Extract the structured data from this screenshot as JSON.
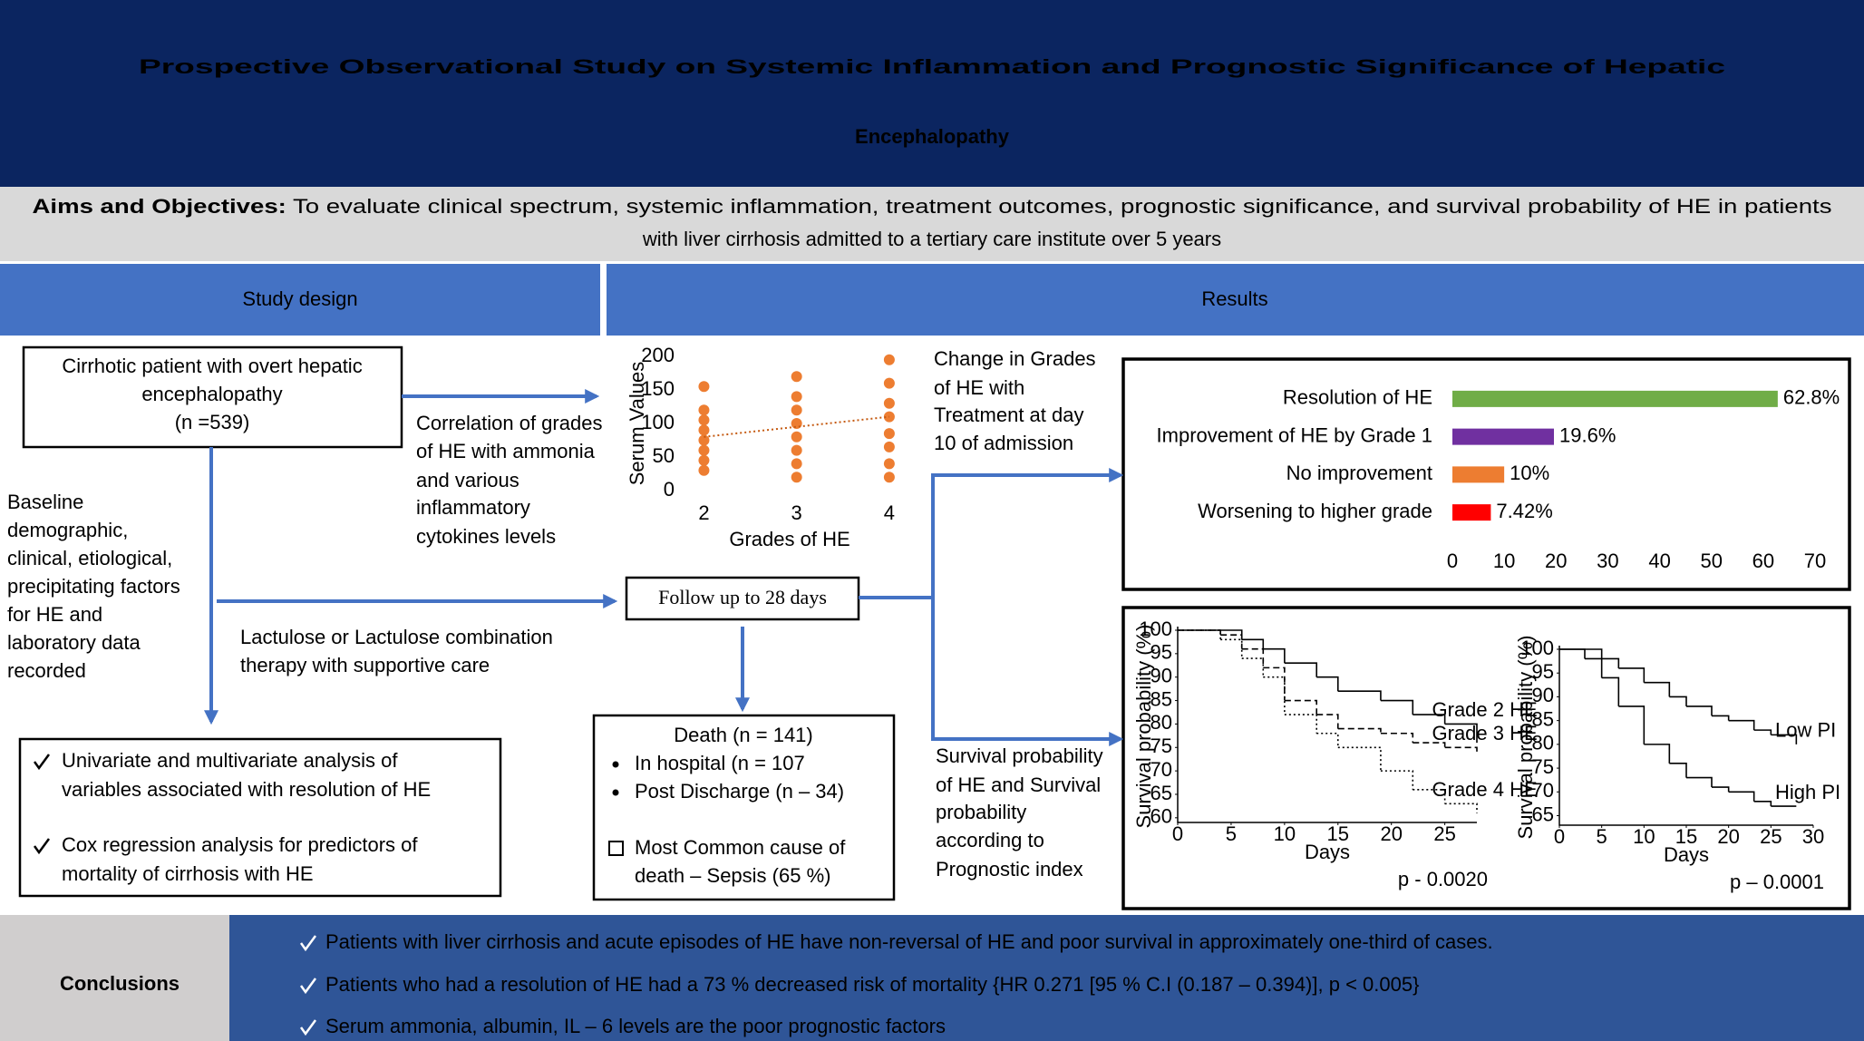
{
  "header": {
    "title": [
      "Prospective Observational Study on Systemic Inflammation and Prognostic Significance of Hepatic",
      "Encephalopathy"
    ]
  },
  "aims": {
    "label": "Aims and Objectives:",
    "lines": [
      "To evaluate clinical spectrum, systemic inflammation, treatment outcomes, prognostic significance, and survival probability of HE in patients",
      "with liver cirrhosis admitted to a tertiary care institute over 5 years"
    ]
  },
  "sections": {
    "study_design": "Study design",
    "results": "Results"
  },
  "flow": {
    "patient_box": [
      "Cirrhotic patient with overt hepatic",
      "encephalopathy",
      "(n =539)"
    ],
    "correlation_note": [
      "Correlation of grades",
      "of HE with ammonia",
      "and various",
      "inflammatory",
      "cytokines levels"
    ],
    "baseline_note": [
      "Baseline",
      "demographic,",
      "clinical, etiological,",
      "precipitating factors",
      "for HE and",
      "laboratory data",
      "recorded"
    ],
    "treatment_note": [
      "Lactulose or Lactulose combination",
      "therapy with supportive care"
    ],
    "follow_up": "Follow up to 28 days",
    "death_box": {
      "title": "Death (n = 141)",
      "bullets": [
        "In hospital (n = 107",
        "Post Discharge (n – 34)"
      ],
      "note": [
        "Most Common cause of",
        "death – Sepsis (65 %)"
      ]
    },
    "analysis_box": [
      [
        "Univariate and multivariate analysis of",
        "variables associated with resolution of  HE"
      ],
      [
        "Cox regression analysis for predictors of",
        "mortality of cirrhosis with HE"
      ]
    ],
    "grade_change_note": [
      "Change in Grades",
      "of HE with",
      "Treatment at day",
      "10 of admission"
    ],
    "survival_note": [
      "Survival probability",
      "of HE and Survival",
      "probability",
      "according to",
      "Prognostic index"
    ]
  },
  "chart_data": [
    {
      "type": "scatter",
      "xlabel": "Grades of HE",
      "ylabel": "Serum Values",
      "color": "#ed7d31",
      "x": [
        2,
        2,
        2,
        2,
        2,
        2,
        2,
        2,
        3,
        3,
        3,
        3,
        3,
        3,
        3,
        3,
        4,
        4,
        4,
        4,
        4,
        4,
        4,
        4
      ],
      "values": [
        30,
        45,
        60,
        75,
        90,
        105,
        120,
        155,
        20,
        40,
        60,
        80,
        100,
        120,
        140,
        170,
        20,
        40,
        65,
        85,
        110,
        130,
        160,
        195
      ],
      "trendline": {
        "x": [
          2,
          4
        ],
        "values": [
          80,
          110
        ]
      },
      "xlim": [
        1.8,
        4.05
      ],
      "xticks": [
        2,
        3,
        4
      ],
      "ylim": [
        0,
        200
      ],
      "yticks": [
        0,
        50,
        100,
        150,
        200
      ]
    },
    {
      "type": "bar",
      "orientation": "horizontal",
      "categories": [
        "Resolution of HE",
        "Improvement of HE by Grade 1",
        "No improvement",
        "Worsening to higher grade"
      ],
      "values": [
        62.8,
        19.6,
        10,
        7.42
      ],
      "value_labels": [
        "62.8%",
        "19.6%",
        "10%",
        "7.42%"
      ],
      "colors": [
        "#70ad47",
        "#7030a0",
        "#ed7d31",
        "#ff0000"
      ],
      "xlim": [
        0,
        70
      ],
      "xticks": [
        0,
        10,
        20,
        30,
        40,
        50,
        60,
        70
      ]
    },
    {
      "type": "line",
      "step": true,
      "xlabel": "Days",
      "ylabel": "Survival probability (%)",
      "annotation": "p - 0.0020",
      "x": [
        0,
        4,
        6,
        8,
        10,
        13,
        15,
        19,
        22,
        25,
        28
      ],
      "series": [
        {
          "name": "Grade 2 HE",
          "color": "#000000",
          "dash": "solid",
          "values": [
            100,
            100,
            98,
            96,
            93,
            90,
            87,
            85,
            82,
            80,
            76
          ]
        },
        {
          "name": "Grade 3 HE",
          "color": "#000000",
          "dash": "dashed",
          "values": [
            100,
            99,
            96,
            92,
            85,
            82,
            79,
            78,
            76,
            75,
            74
          ]
        },
        {
          "name": "Grade 4 HE",
          "color": "#000000",
          "dash": "dotted",
          "values": [
            100,
            98,
            94,
            90,
            82,
            78,
            75,
            70,
            66,
            63,
            61
          ]
        }
      ],
      "xlim": [
        0,
        28
      ],
      "xticks": [
        0,
        5,
        10,
        15,
        20,
        25
      ],
      "ylim": [
        59,
        100
      ],
      "yticks": [
        60,
        65,
        70,
        75,
        80,
        85,
        90,
        95,
        100
      ]
    },
    {
      "type": "line",
      "step": true,
      "xlabel": "Days",
      "ylabel": "Survival probability (%)",
      "annotation": "p – 0.0001",
      "x": [
        0,
        3,
        5,
        7,
        10,
        13,
        15,
        18,
        20,
        23,
        25,
        28
      ],
      "series": [
        {
          "name": "Low PI",
          "color": "#000000",
          "dash": "solid",
          "values": [
            100,
            100,
            98,
            96,
            93,
            90,
            88,
            86,
            85,
            83,
            82,
            80
          ]
        },
        {
          "name": "High PI",
          "color": "#000000",
          "dash": "solid",
          "values": [
            100,
            98,
            94,
            88,
            80,
            76,
            73,
            71,
            70,
            68,
            67,
            67
          ]
        }
      ],
      "xlim": [
        0,
        30
      ],
      "xticks": [
        0,
        5,
        10,
        15,
        20,
        25,
        30
      ],
      "ylim": [
        63,
        100
      ],
      "yticks": [
        65,
        70,
        75,
        80,
        85,
        90,
        95,
        100
      ]
    }
  ],
  "conclusions": {
    "label": "Conclusions",
    "items": [
      "Patients with liver cirrhosis and acute episodes of HE have non-reversal of HE and poor survival in approximately one-third of cases.",
      "Patients who had a resolution of HE had a 73 % decreased risk of mortality {HR 0.271 [95 % C.I (0.187 – 0.394)], p < 0.005}",
      "Serum ammonia, albumin, IL – 6 levels are the poor prognostic factors"
    ]
  }
}
